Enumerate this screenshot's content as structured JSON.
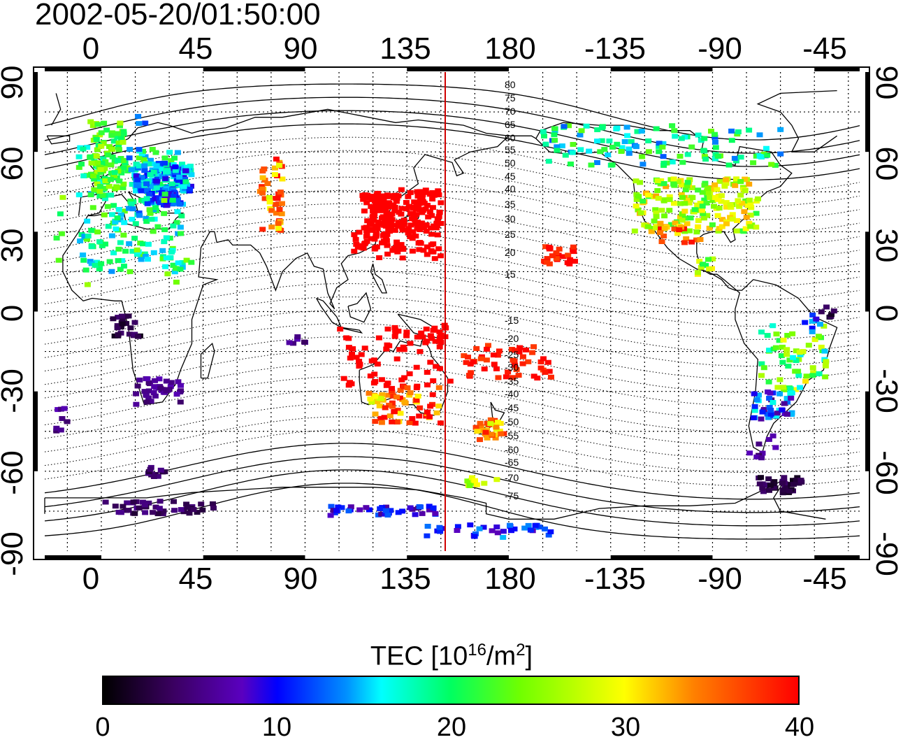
{
  "title": "2002-05-20/01:50:00",
  "lon_ticks": [
    "0",
    "45",
    "90",
    "135",
    "180",
    "-135",
    "-90",
    "-45"
  ],
  "lat_ticks": [
    "90",
    "60",
    "30",
    "0",
    "-30",
    "-60",
    "-90"
  ],
  "mlat_labels_north": [
    "80",
    "75",
    "70",
    "65",
    "60",
    "55",
    "50",
    "45",
    "40",
    "35",
    "30",
    "25",
    "20",
    "15"
  ],
  "mlat_labels_south": [
    "15",
    "20",
    "25",
    "30",
    "35",
    "40",
    "45",
    "50",
    "55",
    "60",
    "65",
    "70",
    "75"
  ],
  "colorbar": {
    "title": "TEC  [10",
    "title_sup1": "16",
    "title_mid": "/m",
    "title_sup2": "2",
    "title_end": "]",
    "ticks": [
      "0",
      "10",
      "20",
      "30",
      "40"
    ],
    "range": [
      0,
      40
    ],
    "colors": [
      "#000000",
      "#5a00c0",
      "#0000ff",
      "#00ffff",
      "#00ff60",
      "#ffff00",
      "#ff8000",
      "#ff0000"
    ]
  },
  "map": {
    "lon_range": [
      -25,
      335
    ],
    "lat_range": [
      -90,
      90
    ],
    "terminator_lon": 152,
    "terminator_color": "#d00000"
  }
}
